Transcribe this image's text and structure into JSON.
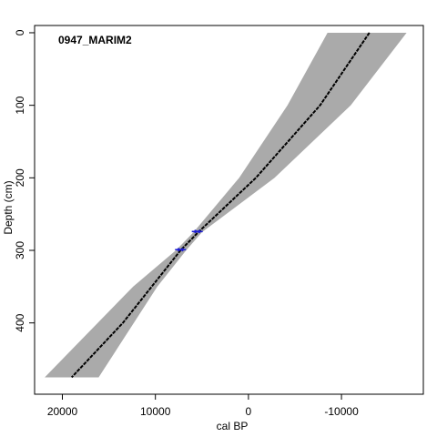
{
  "chart_data": {
    "type": "line",
    "title": "0947_MARIM2",
    "xlabel": "cal BP",
    "ylabel": "Depth (cm)",
    "x_reversed": true,
    "y_reversed": true,
    "xlim": [
      22300,
      -18800
    ],
    "ylim": [
      -10,
      492
    ],
    "xticks": [
      20000,
      10000,
      0,
      -10000
    ],
    "xtick_labels": [
      "20000",
      "10000",
      "0",
      "-10000"
    ],
    "yticks": [
      0,
      100,
      200,
      300,
      400
    ],
    "ytick_labels": [
      "0",
      "100",
      "200",
      "300",
      "400"
    ],
    "grid": false,
    "series": [
      {
        "role": "confidence_band",
        "color": "#aaaaaa",
        "upper": [
          {
            "depth": 0,
            "age": -17000
          },
          {
            "depth": 100,
            "age": -11000
          },
          {
            "depth": 200,
            "age": -2800
          },
          {
            "depth": 275,
            "age": 5000
          },
          {
            "depth": 300,
            "age": 6700
          },
          {
            "depth": 350,
            "age": 9800
          },
          {
            "depth": 475,
            "age": 16100
          }
        ],
        "lower": [
          {
            "depth": 0,
            "age": -8500
          },
          {
            "depth": 100,
            "age": -4200
          },
          {
            "depth": 200,
            "age": 1000
          },
          {
            "depth": 275,
            "age": 5900
          },
          {
            "depth": 300,
            "age": 7800
          },
          {
            "depth": 350,
            "age": 12400
          },
          {
            "depth": 475,
            "age": 21900
          }
        ]
      },
      {
        "role": "age_model",
        "color": "#000000",
        "points": [
          {
            "depth": 0,
            "age": -13000
          },
          {
            "depth": 100,
            "age": -7700
          },
          {
            "depth": 200,
            "age": -800
          },
          {
            "depth": 275,
            "age": 5400
          },
          {
            "depth": 300,
            "age": 7300
          },
          {
            "depth": 400,
            "age": 13500
          },
          {
            "depth": 475,
            "age": 19000
          }
        ]
      }
    ],
    "dated_samples": [
      {
        "depth": 274,
        "age": 5500,
        "color": "#1e1ed2"
      },
      {
        "depth": 299,
        "age": 7300,
        "color": "#1e1ed2"
      }
    ]
  }
}
